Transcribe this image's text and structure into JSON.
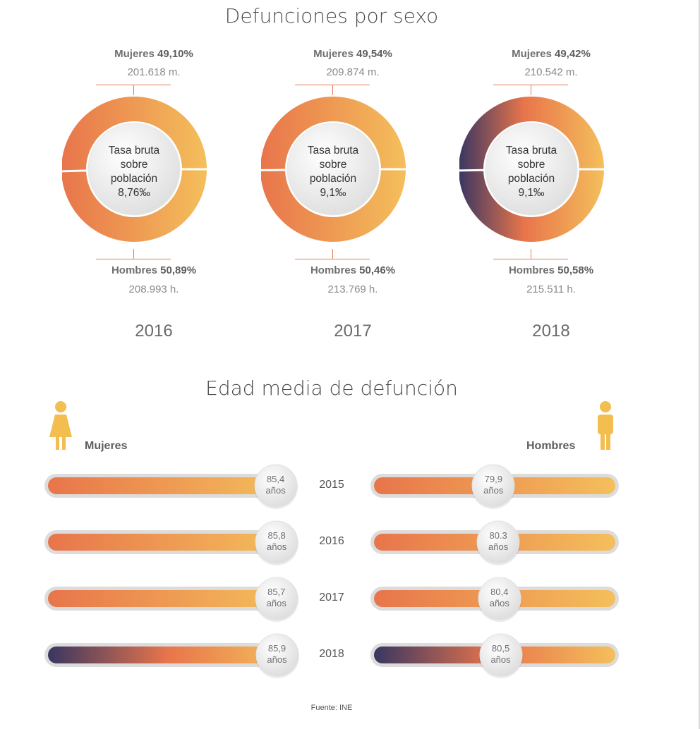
{
  "colors": {
    "orange": "#e8754b",
    "yellow": "#f4bf5b",
    "dark_purple": "#3a3661",
    "track": "#dcdcdc"
  },
  "section1": {
    "title": "Defunciones por sexo"
  },
  "section2": {
    "title": "Edad media de defunción"
  },
  "chart_data": [
    {
      "type": "pie",
      "title": "Defunciones por sexo",
      "donuts": [
        {
          "year": "2016",
          "mujeres": {
            "label": "Mujeres",
            "pct": "49,10%",
            "count": "201.618 m.",
            "value": 49.1
          },
          "hombres": {
            "label": "Hombres",
            "pct": "50,89%",
            "count": "208.993 h.",
            "value": 50.89
          },
          "center": [
            "Tasa bruta",
            "sobre",
            "población",
            "8,76‰"
          ]
        },
        {
          "year": "2017",
          "mujeres": {
            "label": "Mujeres",
            "pct": "49,54%",
            "count": "209.874 m.",
            "value": 49.54
          },
          "hombres": {
            "label": "Hombres",
            "pct": "50,46%",
            "count": "213.769 h.",
            "value": 50.46
          },
          "center": [
            "Tasa bruta",
            "sobre",
            "población",
            "9,1‰"
          ]
        },
        {
          "year": "2018",
          "mujeres": {
            "label": "Mujeres",
            "pct": "49,42%",
            "count": "210.542 m.",
            "value": 49.42
          },
          "hombres": {
            "label": "Hombres",
            "pct": "50,58%",
            "count": "215.511 h.",
            "value": 50.58
          },
          "center": [
            "Tasa bruta",
            "sobre",
            "población",
            "9,1‰"
          ]
        }
      ]
    },
    {
      "type": "bar",
      "title": "Edad media de defunción",
      "series": [
        {
          "name": "Mujeres",
          "values": [
            85.4,
            85.8,
            85.7,
            85.9
          ],
          "labels": [
            "85,4",
            "85,8",
            "85,7",
            "85,9"
          ]
        },
        {
          "name": "Hombres",
          "values": [
            79.9,
            80.3,
            80.4,
            80.5
          ],
          "labels": [
            "79,9",
            "80.3",
            "80,4",
            "80,5"
          ]
        }
      ],
      "categories": [
        "2015",
        "2016",
        "2017",
        "2018"
      ],
      "unit": "años"
    }
  ],
  "fuente": "Fuente: INE"
}
